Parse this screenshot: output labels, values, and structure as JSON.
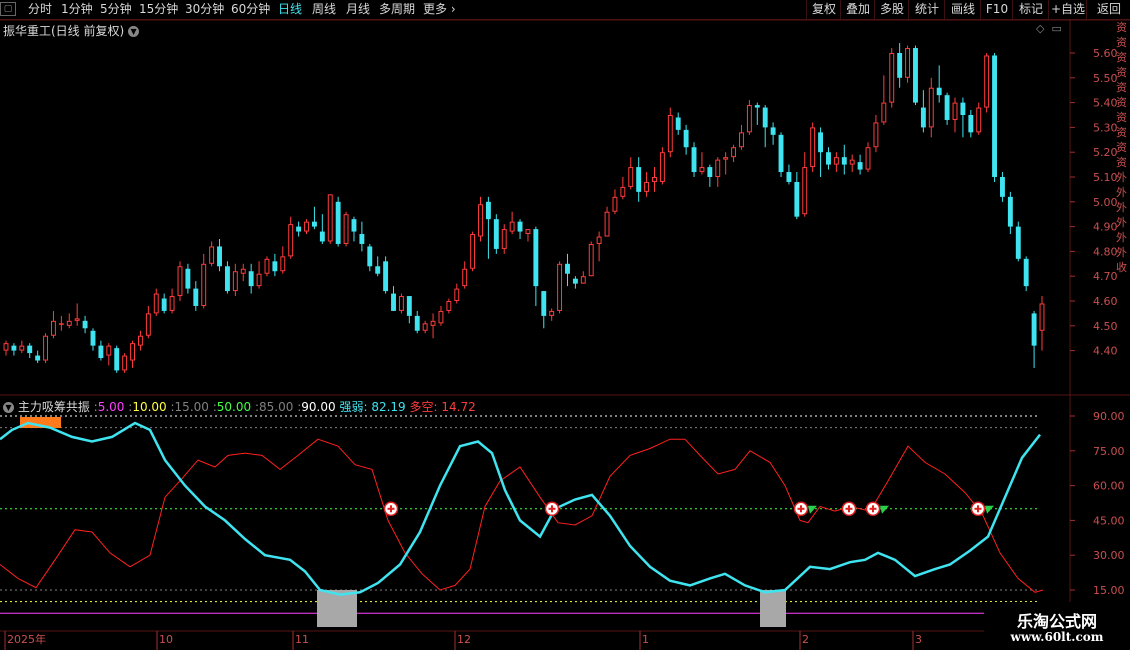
{
  "toolbar": {
    "periods": [
      {
        "label": "分时",
        "active": false
      },
      {
        "label": "1分钟",
        "active": false
      },
      {
        "label": "5分钟",
        "active": false
      },
      {
        "label": "15分钟",
        "active": false
      },
      {
        "label": "30分钟",
        "active": false
      },
      {
        "label": "60分钟",
        "active": false
      },
      {
        "label": "日线",
        "active": true
      },
      {
        "label": "周线",
        "active": false
      },
      {
        "label": "月线",
        "active": false
      },
      {
        "label": "多周期",
        "active": false
      },
      {
        "label": "更多",
        "active": false
      }
    ],
    "right_buttons": [
      "复权",
      "叠加",
      "多股",
      "统计",
      "画线",
      "F10",
      "标记",
      "+自选",
      "返回"
    ]
  },
  "main_chart": {
    "title": "振华重工(日线 前复权)",
    "price_ticks": [
      "5.60",
      "5.50",
      "5.40",
      "5.30",
      "5.20",
      "5.10",
      "5.00",
      "4.90",
      "4.80",
      "4.70",
      "4.60",
      "4.50",
      "4.40"
    ],
    "colors": {
      "up": "#ff3c3c",
      "down": "#3fe4f0",
      "grid": "#5a1414"
    }
  },
  "indicator": {
    "name": "主力吸筹共振",
    "params": [
      {
        "value": "5.00",
        "color": "#ff40ff"
      },
      {
        "value": "10.00",
        "color": "#ffff40"
      },
      {
        "value": "15.00",
        "color": "#808080"
      },
      {
        "value": "50.00",
        "color": "#40ff40"
      },
      {
        "value": "85.00",
        "color": "#808080"
      },
      {
        "value": "90.00",
        "color": "#ffffff"
      }
    ],
    "strength_label": "强弱",
    "strength_value": "82.19",
    "longshort_label": "多空",
    "longshort_value": "14.72",
    "ticks": [
      "90.00",
      "75.00",
      "60.00",
      "45.00",
      "30.00",
      "15.00"
    ],
    "lines": {
      "strength": "#3fe4f0",
      "longshort": "#ff2020"
    }
  },
  "date_axis": [
    "2025年",
    "10",
    "11",
    "12",
    "1",
    "2",
    "3"
  ],
  "side_strip": "资资资资资资资资资资外外外外外外收",
  "watermark": {
    "line1": "乐淘公式网",
    "line2": "www.60lt.com"
  },
  "candles": [
    [
      4.4,
      4.43,
      4.44,
      4.38
    ],
    [
      4.42,
      4.4,
      4.43,
      4.38
    ],
    [
      4.4,
      4.42,
      4.44,
      4.39
    ],
    [
      4.42,
      4.39,
      4.43,
      4.37
    ],
    [
      4.38,
      4.36,
      4.4,
      4.35
    ],
    [
      4.36,
      4.46,
      4.47,
      4.35
    ],
    [
      4.46,
      4.52,
      4.56,
      4.45
    ],
    [
      4.51,
      4.51,
      4.54,
      4.48
    ],
    [
      4.5,
      4.52,
      4.55,
      4.49
    ],
    [
      4.52,
      4.53,
      4.59,
      4.5
    ],
    [
      4.52,
      4.49,
      4.54,
      4.47
    ],
    [
      4.48,
      4.42,
      4.49,
      4.4
    ],
    [
      4.42,
      4.37,
      4.44,
      4.36
    ],
    [
      4.38,
      4.42,
      4.43,
      4.34
    ],
    [
      4.41,
      4.32,
      4.42,
      4.31
    ],
    [
      4.32,
      4.38,
      4.39,
      4.31
    ],
    [
      4.36,
      4.43,
      4.44,
      4.33
    ],
    [
      4.42,
      4.46,
      4.48,
      4.4
    ],
    [
      4.46,
      4.55,
      4.58,
      4.45
    ],
    [
      4.55,
      4.63,
      4.65,
      4.54
    ],
    [
      4.61,
      4.56,
      4.63,
      4.55
    ],
    [
      4.56,
      4.62,
      4.65,
      4.55
    ],
    [
      4.62,
      4.74,
      4.76,
      4.6
    ],
    [
      4.73,
      4.65,
      4.75,
      4.63
    ],
    [
      4.65,
      4.58,
      4.68,
      4.56
    ],
    [
      4.58,
      4.75,
      4.79,
      4.57
    ],
    [
      4.75,
      4.82,
      4.84,
      4.74
    ],
    [
      4.82,
      4.74,
      4.85,
      4.72
    ],
    [
      4.74,
      4.64,
      4.76,
      4.63
    ],
    [
      4.64,
      4.72,
      4.75,
      4.62
    ],
    [
      4.71,
      4.73,
      4.75,
      4.68
    ],
    [
      4.72,
      4.66,
      4.75,
      4.63
    ],
    [
      4.66,
      4.71,
      4.76,
      4.65
    ],
    [
      4.71,
      4.77,
      4.78,
      4.7
    ],
    [
      4.76,
      4.72,
      4.79,
      4.7
    ],
    [
      4.72,
      4.78,
      4.82,
      4.71
    ],
    [
      4.78,
      4.91,
      4.94,
      4.77
    ],
    [
      4.9,
      4.88,
      4.92,
      4.86
    ],
    [
      4.88,
      4.92,
      4.93,
      4.87
    ],
    [
      4.92,
      4.9,
      4.98,
      4.89
    ],
    [
      4.88,
      4.84,
      4.95,
      4.83
    ],
    [
      4.84,
      5.03,
      5.03,
      4.83
    ],
    [
      5.0,
      4.83,
      5.02,
      4.82
    ],
    [
      4.83,
      4.95,
      4.96,
      4.82
    ],
    [
      4.93,
      4.88,
      4.94,
      4.84
    ],
    [
      4.87,
      4.83,
      4.92,
      4.8
    ],
    [
      4.82,
      4.74,
      4.83,
      4.72
    ],
    [
      4.74,
      4.71,
      4.78,
      4.7
    ],
    [
      4.76,
      4.64,
      4.78,
      4.63
    ],
    [
      4.63,
      4.56,
      4.66,
      4.56
    ],
    [
      4.56,
      4.62,
      4.63,
      4.55
    ],
    [
      4.62,
      4.54,
      4.62,
      4.51
    ],
    [
      4.54,
      4.48,
      4.56,
      4.47
    ],
    [
      4.48,
      4.51,
      4.52,
      4.47
    ],
    [
      4.5,
      4.52,
      4.55,
      4.45
    ],
    [
      4.51,
      4.56,
      4.58,
      4.5
    ],
    [
      4.56,
      4.6,
      4.61,
      4.55
    ],
    [
      4.6,
      4.65,
      4.67,
      4.59
    ],
    [
      4.66,
      4.73,
      4.76,
      4.65
    ],
    [
      4.73,
      4.87,
      4.88,
      4.72
    ],
    [
      4.86,
      4.99,
      5.02,
      4.84
    ],
    [
      5.0,
      4.93,
      5.02,
      4.77
    ],
    [
      4.93,
      4.81,
      4.95,
      4.79
    ],
    [
      4.81,
      4.89,
      4.91,
      4.79
    ],
    [
      4.88,
      4.92,
      4.96,
      4.87
    ],
    [
      4.92,
      4.88,
      4.93,
      4.85
    ],
    [
      4.87,
      4.89,
      4.89,
      4.84
    ],
    [
      4.89,
      4.66,
      4.9,
      4.58
    ],
    [
      4.64,
      4.54,
      4.64,
      4.49
    ],
    [
      4.54,
      4.56,
      4.57,
      4.52
    ],
    [
      4.56,
      4.75,
      4.76,
      4.55
    ],
    [
      4.75,
      4.71,
      4.79,
      4.66
    ],
    [
      4.69,
      4.67,
      4.7,
      4.65
    ],
    [
      4.67,
      4.7,
      4.72,
      4.67
    ],
    [
      4.7,
      4.83,
      4.84,
      4.7
    ],
    [
      4.83,
      4.86,
      4.88,
      4.76
    ],
    [
      4.86,
      4.96,
      4.98,
      4.86
    ],
    [
      4.96,
      5.02,
      5.05,
      4.95
    ],
    [
      5.02,
      5.06,
      5.1,
      5.01
    ],
    [
      5.06,
      5.14,
      5.18,
      5.05
    ],
    [
      5.14,
      5.04,
      5.18,
      5.0
    ],
    [
      5.04,
      5.08,
      5.12,
      5.02
    ],
    [
      5.08,
      5.1,
      5.14,
      5.04
    ],
    [
      5.08,
      5.2,
      5.22,
      5.07
    ],
    [
      5.2,
      5.35,
      5.38,
      5.18
    ],
    [
      5.34,
      5.29,
      5.36,
      5.27
    ],
    [
      5.29,
      5.22,
      5.31,
      5.19
    ],
    [
      5.22,
      5.12,
      5.24,
      5.1
    ],
    [
      5.12,
      5.14,
      5.2,
      5.11
    ],
    [
      5.14,
      5.1,
      5.15,
      5.06
    ],
    [
      5.1,
      5.17,
      5.18,
      5.06
    ],
    [
      5.17,
      5.18,
      5.2,
      5.11
    ],
    [
      5.18,
      5.22,
      5.23,
      5.16
    ],
    [
      5.22,
      5.28,
      5.31,
      5.21
    ],
    [
      5.28,
      5.39,
      5.41,
      5.27
    ],
    [
      5.39,
      5.38,
      5.4,
      5.31
    ],
    [
      5.38,
      5.3,
      5.39,
      5.22
    ],
    [
      5.3,
      5.27,
      5.32,
      5.23
    ],
    [
      5.27,
      5.12,
      5.28,
      5.1
    ],
    [
      5.12,
      5.08,
      5.15,
      5.07
    ],
    [
      5.08,
      4.94,
      5.12,
      4.93
    ],
    [
      4.95,
      5.14,
      5.2,
      4.94
    ],
    [
      5.14,
      5.3,
      5.32,
      5.12
    ],
    [
      5.28,
      5.2,
      5.3,
      5.1
    ],
    [
      5.2,
      5.15,
      5.22,
      5.13
    ],
    [
      5.15,
      5.18,
      5.2,
      5.12
    ],
    [
      5.18,
      5.15,
      5.23,
      5.11
    ],
    [
      5.15,
      5.17,
      5.19,
      5.12
    ],
    [
      5.16,
      5.13,
      5.19,
      5.11
    ],
    [
      5.13,
      5.22,
      5.24,
      5.12
    ],
    [
      5.22,
      5.32,
      5.35,
      5.2
    ],
    [
      5.32,
      5.4,
      5.51,
      5.31
    ],
    [
      5.4,
      5.6,
      5.62,
      5.38
    ],
    [
      5.6,
      5.5,
      5.64,
      5.46
    ],
    [
      5.5,
      5.62,
      5.63,
      5.48
    ],
    [
      5.62,
      5.4,
      5.63,
      5.39
    ],
    [
      5.38,
      5.3,
      5.45,
      5.28
    ],
    [
      5.3,
      5.46,
      5.5,
      5.26
    ],
    [
      5.46,
      5.43,
      5.55,
      5.4
    ],
    [
      5.43,
      5.33,
      5.44,
      5.31
    ],
    [
      5.33,
      5.4,
      5.42,
      5.28
    ],
    [
      5.4,
      5.35,
      5.42,
      5.26
    ],
    [
      5.35,
      5.28,
      5.37,
      5.26
    ],
    [
      5.28,
      5.38,
      5.4,
      5.27
    ],
    [
      5.38,
      5.59,
      5.6,
      5.36
    ],
    [
      5.59,
      5.1,
      5.6,
      5.08
    ],
    [
      5.1,
      5.02,
      5.12,
      5.0
    ],
    [
      5.02,
      4.9,
      5.04,
      4.87
    ],
    [
      4.9,
      4.77,
      4.92,
      4.76
    ],
    [
      4.77,
      4.66,
      4.78,
      4.64
    ],
    [
      4.55,
      4.42,
      4.56,
      4.33
    ],
    [
      4.48,
      4.59,
      4.62,
      4.4
    ]
  ]
}
